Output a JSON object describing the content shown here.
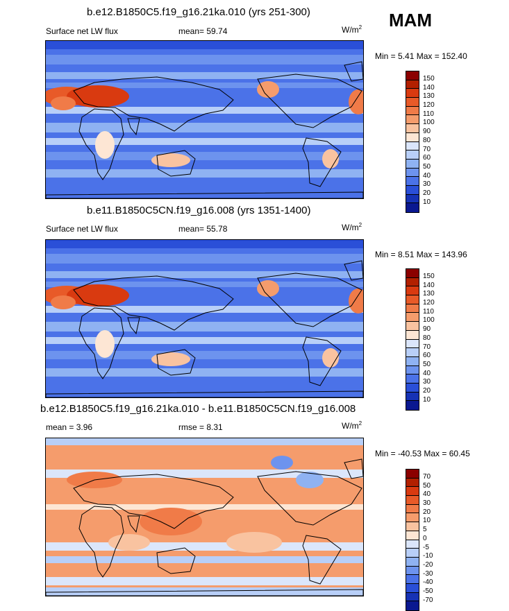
{
  "season": "MAM",
  "units_label": "W/m",
  "units_sup": "2",
  "panels": [
    {
      "title": "b.e12.B1850C5.f19_g16.21ka.010 (yrs 251-300)",
      "left_label": "Surface net LW flux",
      "mid_label": "mean=  59.74",
      "minmax": "Min =   5.41 Max = 152.40",
      "levels": [
        "150",
        "140",
        "130",
        "120",
        "110",
        "100",
        "90",
        "80",
        "70",
        "60",
        "50",
        "40",
        "30",
        "20",
        "10"
      ],
      "colors": [
        "#8b0000",
        "#b22000",
        "#d93a10",
        "#e85a28",
        "#f07b48",
        "#f59c6c",
        "#f9c3a0",
        "#fde6d4",
        "#dbe6fb",
        "#b8cff8",
        "#8fb2f2",
        "#6d93ee",
        "#4b72e8",
        "#2a4fd8",
        "#1632b5",
        "#0a1890"
      ],
      "kind": "abs"
    },
    {
      "title": "b.e11.B1850C5CN.f19_g16.008 (yrs 1351-1400)",
      "left_label": "Surface net LW flux",
      "mid_label": "mean=  55.78",
      "minmax": "Min =   8.51 Max = 143.96",
      "levels": [
        "150",
        "140",
        "130",
        "120",
        "110",
        "100",
        "90",
        "80",
        "70",
        "60",
        "50",
        "40",
        "30",
        "20",
        "10"
      ],
      "colors": [
        "#8b0000",
        "#b22000",
        "#d93a10",
        "#e85a28",
        "#f07b48",
        "#f59c6c",
        "#f9c3a0",
        "#fde6d4",
        "#dbe6fb",
        "#b8cff8",
        "#8fb2f2",
        "#6d93ee",
        "#4b72e8",
        "#2a4fd8",
        "#1632b5",
        "#0a1890"
      ],
      "kind": "abs"
    },
    {
      "title": "b.e12.B1850C5.f19_g16.21ka.010 - b.e11.B1850C5CN.f19_g16.008",
      "left_label": "mean =   3.96",
      "mid_label": "rmse =   8.31",
      "minmax": "Min = -40.53 Max =  60.45",
      "levels": [
        "70",
        "50",
        "40",
        "30",
        "20",
        "10",
        "5",
        "0",
        "-5",
        "-10",
        "-20",
        "-30",
        "-40",
        "-50",
        "-70"
      ],
      "colors": [
        "#8b0000",
        "#b22000",
        "#d93a10",
        "#e85a28",
        "#f07b48",
        "#f59c6c",
        "#f9c3a0",
        "#fde6d4",
        "#dbe6fb",
        "#b8cff8",
        "#8fb2f2",
        "#6d93ee",
        "#4b72e8",
        "#2a4fd8",
        "#1632b5",
        "#0a1890"
      ],
      "kind": "diff"
    }
  ]
}
